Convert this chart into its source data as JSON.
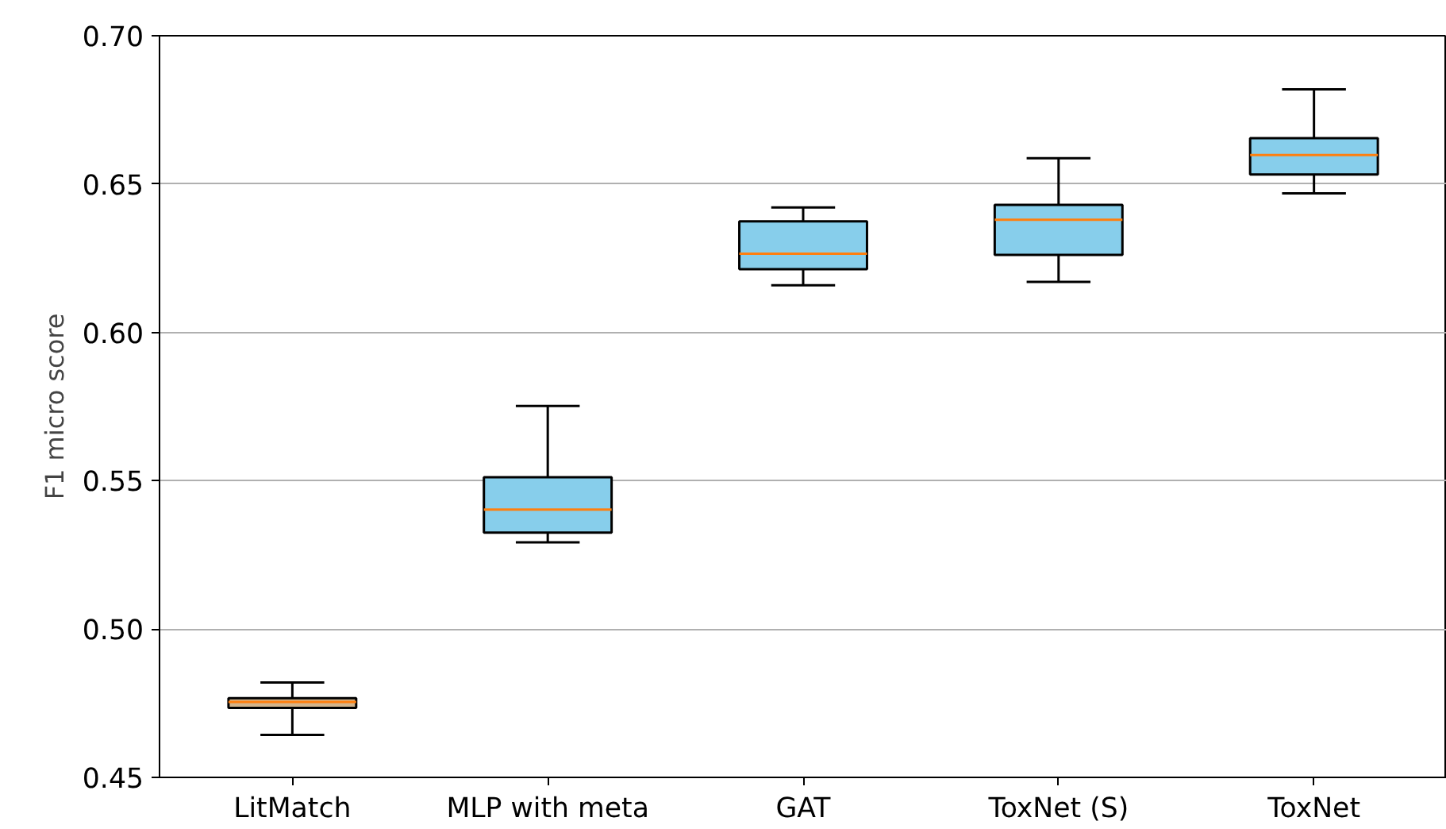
{
  "chart_data": {
    "type": "box",
    "ylabel": "F1 micro score",
    "categories": [
      "LitMatch",
      "MLP with meta",
      "GAT",
      "ToxNet (S)",
      "ToxNet"
    ],
    "boxes": [
      {
        "low": 0.4643,
        "q1": 0.4734,
        "median": 0.4754,
        "q3": 0.4767,
        "high": 0.482
      },
      {
        "low": 0.5292,
        "q1": 0.5325,
        "median": 0.5403,
        "q3": 0.5512,
        "high": 0.5752
      },
      {
        "low": 0.6159,
        "q1": 0.6213,
        "median": 0.6265,
        "q3": 0.6374,
        "high": 0.6421
      },
      {
        "low": 0.617,
        "q1": 0.6261,
        "median": 0.638,
        "q3": 0.643,
        "high": 0.6587
      },
      {
        "low": 0.6469,
        "q1": 0.6532,
        "median": 0.6598,
        "q3": 0.6655,
        "high": 0.6819
      }
    ],
    "colors": [
      "#d2b48c",
      "#87ceeb",
      "#87ceeb",
      "#87ceeb",
      "#87ceeb"
    ],
    "ylim": [
      0.45,
      0.7
    ],
    "yticks": [
      {
        "value": 0.45,
        "label": "0.45"
      },
      {
        "value": 0.5,
        "label": "0.50"
      },
      {
        "value": 0.55,
        "label": "0.55"
      },
      {
        "value": 0.6,
        "label": "0.60"
      },
      {
        "value": 0.65,
        "label": "0.65"
      },
      {
        "value": 0.7,
        "label": "0.70"
      }
    ],
    "grid": "y"
  }
}
